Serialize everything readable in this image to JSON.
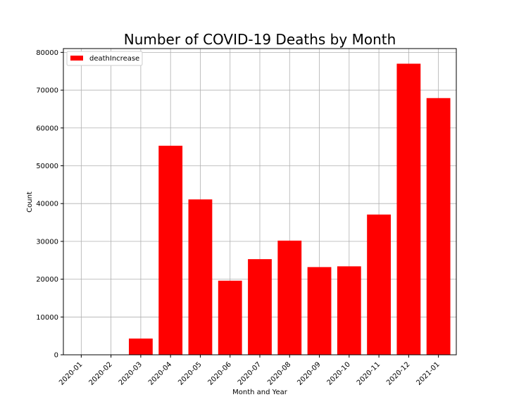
{
  "chart_data": {
    "type": "bar",
    "title": "Number of COVID-19 Deaths by Month",
    "xlabel": "Month and Year",
    "ylabel": "Count",
    "categories": [
      "2020-01",
      "2020-02",
      "2020-03",
      "2020-04",
      "2020-05",
      "2020-06",
      "2020-07",
      "2020-08",
      "2020-09",
      "2020-10",
      "2020-11",
      "2020-12",
      "2021-01"
    ],
    "series": [
      {
        "name": "deathIncrease",
        "color": "#ff0000",
        "values": [
          0,
          2,
          4300,
          55300,
          41100,
          19600,
          25300,
          30200,
          23200,
          23400,
          37100,
          77000,
          67900
        ]
      }
    ],
    "ylim": [
      0,
      81000
    ],
    "yticks": [
      0,
      10000,
      20000,
      30000,
      40000,
      50000,
      60000,
      70000,
      80000
    ],
    "grid": true,
    "legend_position": "upper-left"
  }
}
